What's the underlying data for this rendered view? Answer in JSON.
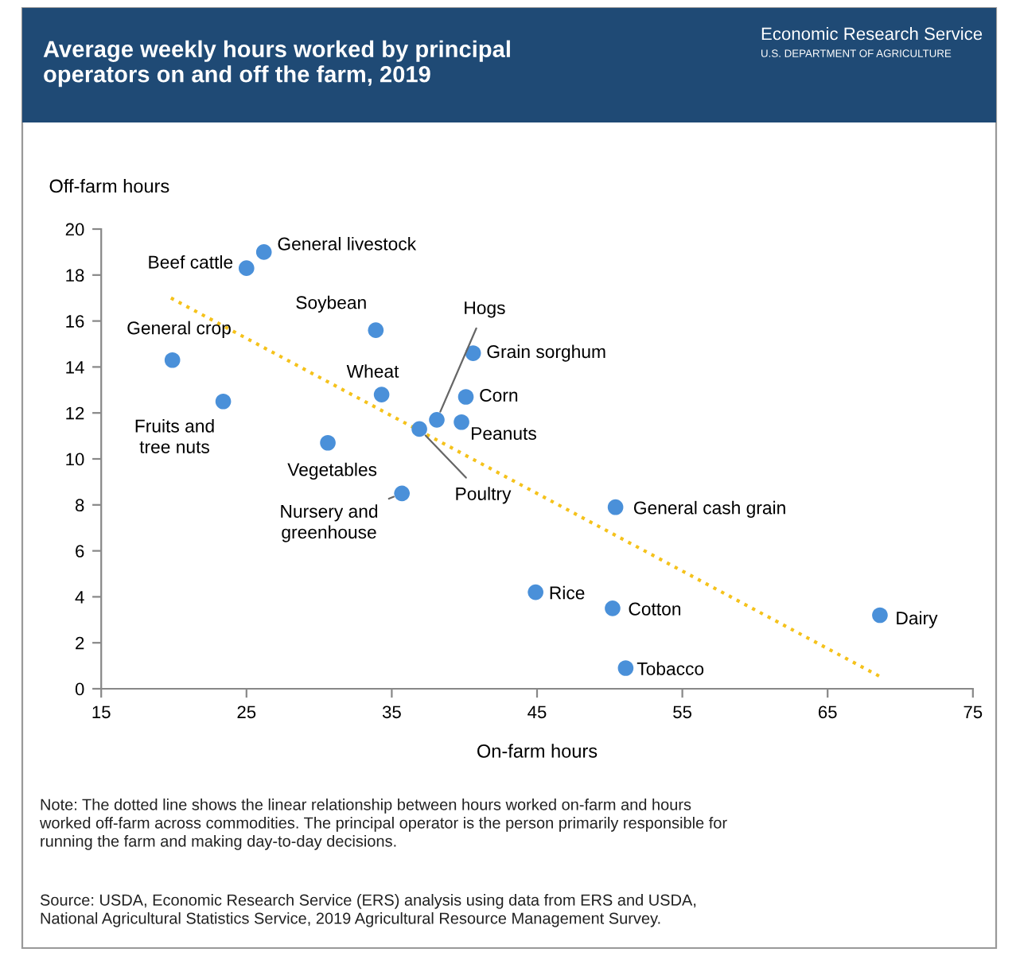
{
  "chart_data": {
    "type": "scatter",
    "title": "Average weekly hours worked by principal\noperators on and off the farm, 2019",
    "xlabel": "On-farm hours",
    "ylabel": "Off-farm hours",
    "xlim": [
      15,
      75
    ],
    "xticks": [
      15,
      25,
      35,
      45,
      55,
      65,
      75
    ],
    "ylim": [
      0,
      20
    ],
    "yticks": [
      0,
      2,
      4,
      6,
      8,
      10,
      12,
      14,
      16,
      18,
      20
    ],
    "grid": false,
    "legend": false,
    "marker": "circle",
    "series": [
      {
        "color": "#4a90d9",
        "x": [
          25.0,
          26.2,
          33.9,
          19.9,
          23.4,
          34.3,
          30.6,
          38.1,
          36.9,
          40.6,
          40.1,
          39.8,
          35.7,
          50.4,
          44.9,
          50.2,
          51.1,
          68.6
        ],
        "values": [
          18.3,
          19.0,
          15.6,
          14.3,
          12.5,
          12.8,
          10.7,
          11.7,
          11.3,
          14.6,
          12.7,
          11.6,
          8.5,
          7.9,
          4.2,
          3.5,
          0.9,
          3.2
        ]
      },
      {
        "type": "line",
        "color": "#f5c21b",
        "line_style": "dotted",
        "marker": "none",
        "x": [
          19.8,
          68.7
        ],
        "values": [
          17.0,
          0.5
        ]
      }
    ],
    "annotations": [
      {
        "text": "Beef cattle",
        "x": 25.0,
        "y": 18.3
      },
      {
        "text": "General livestock",
        "x": 26.2,
        "y": 19.0
      },
      {
        "text": "Soybean",
        "x": 33.9,
        "y": 15.6
      },
      {
        "text": "General crop",
        "x": 19.9,
        "y": 14.3
      },
      {
        "text": "Fruits and\ntree nuts",
        "x": 23.4,
        "y": 12.5
      },
      {
        "text": "Wheat",
        "x": 34.3,
        "y": 12.8
      },
      {
        "text": "Vegetables",
        "x": 30.6,
        "y": 10.7
      },
      {
        "text": "Hogs",
        "x": 38.1,
        "y": 11.7
      },
      {
        "text": "Poultry",
        "x": 36.9,
        "y": 11.3
      },
      {
        "text": "Grain sorghum",
        "x": 40.6,
        "y": 14.6
      },
      {
        "text": "Corn",
        "x": 40.1,
        "y": 12.7
      },
      {
        "text": "Peanuts",
        "x": 39.8,
        "y": 11.6
      },
      {
        "text": "Nursery and\ngreenhouse",
        "x": 35.7,
        "y": 8.5
      },
      {
        "text": "General cash grain",
        "x": 50.4,
        "y": 7.9
      },
      {
        "text": "Rice",
        "x": 44.9,
        "y": 4.2
      },
      {
        "text": "Cotton",
        "x": 50.2,
        "y": 3.5
      },
      {
        "text": "Tobacco",
        "x": 51.1,
        "y": 0.9
      },
      {
        "text": "Dairy",
        "x": 68.6,
        "y": 3.2
      },
      "Economic Research Service",
      "U.S. DEPARTMENT OF AGRICULTURE",
      "Note: The dotted line shows the linear relationship between hours worked on-farm and hours\nworked off-farm across commodities. The principal operator is the person primarily responsible for\nrunning the farm and making day-to-day decisions.",
      "Source: USDA, Economic Research Service (ERS) analysis using data from ERS and USDA,\nNational Agricultural Statistics Service, 2019 Agricultural Resource Management Survey."
    ]
  }
}
